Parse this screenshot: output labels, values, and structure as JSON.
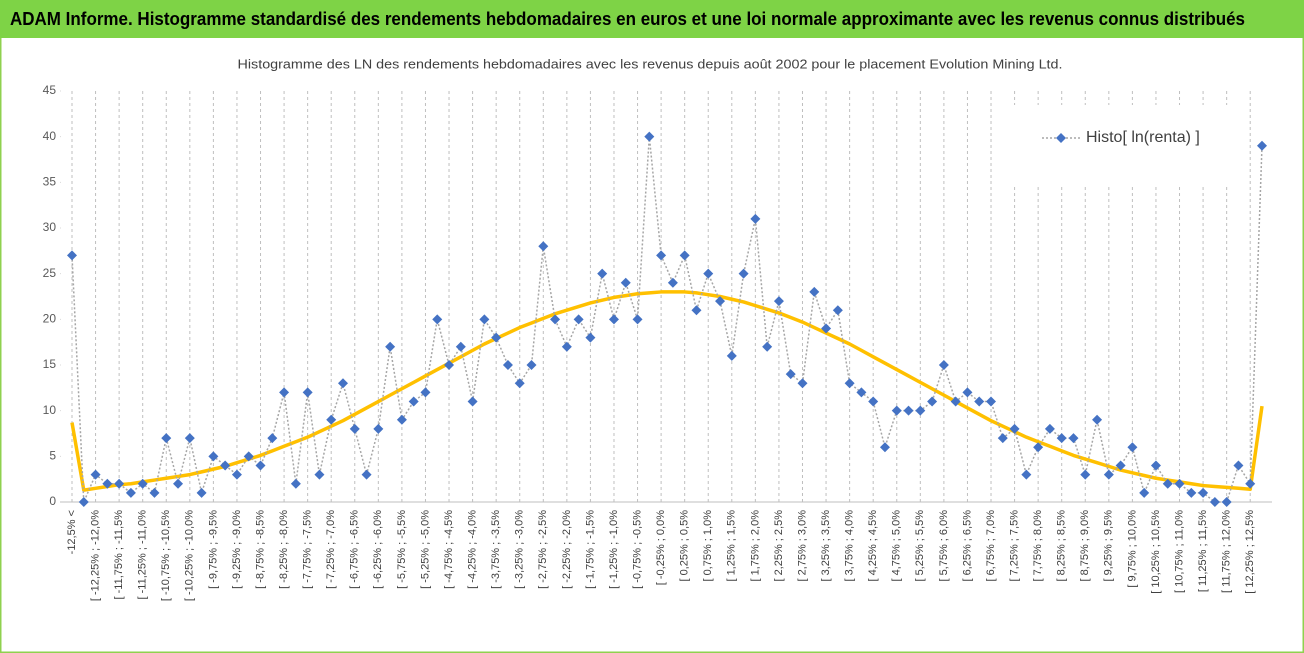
{
  "chart_data": {
    "type": "line",
    "title": "ADAM Informe. Histogramme standardisé des rendements hebdomadaires en euros et une loi normale approximante avec les revenus connus distribués",
    "subtitle": "Histogramme des LN des rendements hebdomadaires avec les revenus depuis août 2002 pour le placement Evolution Mining Ltd.",
    "categories": [
      "-12,5% <",
      null,
      "[ -12,25% ; -12,0%",
      null,
      "[ -11,75% ; -11,5%",
      null,
      "[ -11,25% ; -11,0%",
      null,
      "[ -10,75% ; -10,5%",
      null,
      "[ -10,25% ; -10,0%",
      null,
      "[ -9,75% ; -9,5%",
      null,
      "[ -9,25% ; -9,0%",
      null,
      "[ -8,75% ; -8,5%",
      null,
      "[ -8,25% ; -8,0%",
      null,
      "[ -7,75% ; -7,5%",
      null,
      "[ -7,25% ; -7,0%",
      null,
      "[ -6,75% ; -6,5%",
      null,
      "[ -6,25% ; -6,0%",
      null,
      "[ -5,75% ; -5,5%",
      null,
      "[ -5,25% ; -5,0%",
      null,
      "[ -4,75% ; -4,5%",
      null,
      "[ -4,25% ; -4,0%",
      null,
      "[ -3,75% ; -3,5%",
      null,
      "[ -3,25% ; -3,0%",
      null,
      "[ -2,75% ; -2,5%",
      null,
      "[ -2,25% ; -2,0%",
      null,
      "[ -1,75% ; -1,5%",
      null,
      "[ -1,25% ; -1,0%",
      null,
      "[ -0,75% ; -0,5%",
      null,
      "[ -0,25% ; 0,0%",
      null,
      "[ 0,25% ; 0,5%",
      null,
      "[ 0,75% ; 1,0%",
      null,
      "[ 1,25% ; 1,5%",
      null,
      "[ 1,75% ; 2,0%",
      null,
      "[ 2,25% ; 2,5%",
      null,
      "[ 2,75% ; 3,0%",
      null,
      "[ 3,25% ; 3,5%",
      null,
      "[ 3,75% ; 4,0%",
      null,
      "[ 4,25% ; 4,5%",
      null,
      "[ 4,75% ; 5,0%",
      null,
      "[ 5,25% ; 5,5%",
      null,
      "[ 5,75% ; 6,0%",
      null,
      "[ 6,25% ; 6,5%",
      null,
      "[ 6,75% ; 7,0%",
      null,
      "[ 7,25% ; 7,5%",
      null,
      "[ 7,75% ; 8,0%",
      null,
      "[ 8,25% ; 8,5%",
      null,
      "[ 8,75% ; 9,0%",
      null,
      "[ 9,25% ; 9,5%",
      null,
      "[ 9,75% ; 10,0%",
      null,
      "[ 10,25% ; 10,5%",
      null,
      "[ 10,75% ; 11,0%",
      null,
      "[ 11,25% ; 11,5%",
      null,
      "[ 11,75% ; 12,0%",
      null,
      "[ 12,25% ; 12,5%",
      null
    ],
    "series": [
      {
        "name": "Histo[ ln(renta) ]",
        "color": "#4472c4",
        "line_color": "#a6a6a6",
        "values": [
          27,
          0,
          3,
          2,
          2,
          1,
          2,
          1,
          7,
          2,
          7,
          1,
          5,
          4,
          3,
          5,
          4,
          7,
          12,
          2,
          12,
          3,
          9,
          13,
          8,
          3,
          8,
          17,
          9,
          11,
          12,
          20,
          15,
          17,
          11,
          20,
          18,
          15,
          13,
          15,
          28,
          20,
          17,
          20,
          18,
          25,
          20,
          24,
          20,
          40,
          27,
          24,
          27,
          21,
          25,
          22,
          16,
          25,
          31,
          17,
          22,
          14,
          13,
          23,
          19,
          21,
          13,
          12,
          11,
          6,
          10,
          10,
          10,
          11,
          15,
          11,
          12,
          11,
          11,
          7,
          8,
          3,
          6,
          8,
          7,
          7,
          3,
          9,
          3,
          4,
          6,
          1,
          4,
          2,
          2,
          1,
          1,
          0,
          0,
          4,
          2,
          39
        ]
      },
      {
        "color": "#ffc000",
        "values": [
          8.7,
          1.3,
          1.5,
          1.7,
          1.9,
          2.0,
          2.2,
          2.4,
          2.6,
          2.8,
          3.0,
          3.3,
          3.6,
          3.9,
          4.3,
          4.7,
          5.1,
          5.6,
          6.1,
          6.6,
          7.1,
          7.7,
          8.3,
          8.9,
          9.6,
          10.3,
          11.0,
          11.7,
          12.4,
          13.1,
          13.8,
          14.5,
          15.2,
          15.9,
          16.6,
          17.3,
          17.9,
          18.5,
          19.1,
          19.6,
          20.1,
          20.6,
          21.0,
          21.4,
          21.8,
          22.1,
          22.4,
          22.6,
          22.8,
          22.9,
          23.0,
          23.0,
          23.0,
          22.9,
          22.7,
          22.5,
          22.2,
          21.9,
          21.5,
          21.1,
          20.7,
          20.2,
          19.7,
          19.1,
          18.5,
          17.9,
          17.3,
          16.6,
          15.9,
          15.2,
          14.5,
          13.8,
          13.1,
          12.4,
          11.7,
          11.0,
          10.3,
          9.6,
          8.9,
          8.3,
          7.7,
          7.1,
          6.6,
          6.1,
          5.6,
          5.1,
          4.7,
          4.3,
          3.9,
          3.5,
          3.2,
          2.9,
          2.6,
          2.4,
          2.2,
          2.0,
          1.8,
          1.7,
          1.6,
          1.5,
          1.4,
          10.5
        ]
      }
    ],
    "ylim": [
      0,
      45
    ],
    "yticks": [
      0,
      5,
      10,
      15,
      20,
      25,
      30,
      35,
      40,
      45
    ],
    "legend": "upper right"
  }
}
